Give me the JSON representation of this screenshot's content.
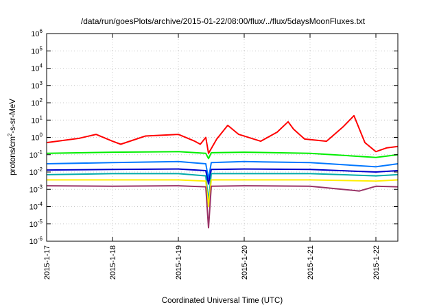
{
  "chart_data": {
    "type": "line",
    "title": "/data/run/goesPlots/archive/2015-01-22/08:00/flux/../flux/5daysMoonFluxes.txt",
    "xlabel": "Coordinated Universal Time (UTC)",
    "ylabel": {
      "base": "protons/cm",
      "sup": "2",
      "rest": "-s-sr-MeV"
    },
    "yscale": "log",
    "ylim": [
      1e-06,
      1000000.0
    ],
    "xlim": [
      "2015-01-17T00:00",
      "2015-01-22T08:00"
    ],
    "grid": true,
    "xtick_labels": [
      "2015-1-17",
      "2015-1-18",
      "2015-1-19",
      "2015-1-20",
      "2015-1-21",
      "2015-1-22"
    ],
    "ytick_labels": [
      {
        "base": "10",
        "exp": "-6"
      },
      {
        "base": "10",
        "exp": "-5"
      },
      {
        "base": "10",
        "exp": "-4"
      },
      {
        "base": "10",
        "exp": "-3"
      },
      {
        "base": "10",
        "exp": "-2"
      },
      {
        "base": "10",
        "exp": "-1"
      },
      {
        "base": "10",
        "exp": "0"
      },
      {
        "base": "10",
        "exp": "1"
      },
      {
        "base": "10",
        "exp": "2"
      },
      {
        "base": "10",
        "exp": "3"
      },
      {
        "base": "10",
        "exp": "4"
      },
      {
        "base": "10",
        "exp": "5"
      },
      {
        "base": "10",
        "exp": "6"
      }
    ],
    "series": [
      {
        "color": "#ff0000",
        "x": [
          "2015-01-17T00:00",
          "2015-01-17T12:00",
          "2015-01-17T18:00",
          "2015-01-18T00:00",
          "2015-01-18T03:00",
          "2015-01-18T12:00",
          "2015-01-19T00:00",
          "2015-01-19T06:00",
          "2015-01-19T08:00",
          "2015-01-19T10:00",
          "2015-01-19T11:00",
          "2015-01-19T14:00",
          "2015-01-19T18:00",
          "2015-01-19T22:00",
          "2015-01-20T06:00",
          "2015-01-20T12:00",
          "2015-01-20T16:00",
          "2015-01-20T18:00",
          "2015-01-20T22:00",
          "2015-01-21T06:00",
          "2015-01-21T12:00",
          "2015-01-21T16:00",
          "2015-01-21T18:00",
          "2015-01-21T20:00",
          "2015-01-22T00:00",
          "2015-01-22T04:00",
          "2015-01-22T08:00"
        ],
        "y": [
          0.5,
          0.9,
          1.5,
          0.6,
          0.4,
          1.2,
          1.5,
          0.6,
          0.4,
          1.0,
          0.12,
          0.8,
          5,
          1.5,
          0.6,
          2,
          8,
          3,
          0.8,
          0.6,
          4,
          18,
          3,
          0.5,
          0.15,
          0.25,
          0.3
        ]
      },
      {
        "color": "#00ee00",
        "x": [
          "2015-01-17T00:00",
          "2015-01-18T00:00",
          "2015-01-19T00:00",
          "2015-01-19T10:00",
          "2015-01-19T11:00",
          "2015-01-19T12:00",
          "2015-01-20T00:00",
          "2015-01-21T00:00",
          "2015-01-22T00:00",
          "2015-01-22T08:00"
        ],
        "y": [
          0.12,
          0.14,
          0.15,
          0.12,
          0.06,
          0.13,
          0.14,
          0.12,
          0.07,
          0.1
        ]
      },
      {
        "color": "#0077ff",
        "x": [
          "2015-01-17T00:00",
          "2015-01-18T00:00",
          "2015-01-19T00:00",
          "2015-01-19T10:00",
          "2015-01-19T11:00",
          "2015-01-19T12:00",
          "2015-01-20T00:00",
          "2015-01-21T00:00",
          "2015-01-22T00:00",
          "2015-01-22T08:00"
        ],
        "y": [
          0.03,
          0.035,
          0.04,
          0.03,
          0.004,
          0.035,
          0.04,
          0.035,
          0.02,
          0.03
        ]
      },
      {
        "color": "#0000cc",
        "x": [
          "2015-01-17T00:00",
          "2015-01-18T00:00",
          "2015-01-19T00:00",
          "2015-01-19T10:00",
          "2015-01-19T11:00",
          "2015-01-19T12:00",
          "2015-01-20T00:00",
          "2015-01-21T00:00",
          "2015-01-22T00:00",
          "2015-01-22T08:00"
        ],
        "y": [
          0.013,
          0.014,
          0.015,
          0.012,
          0.002,
          0.014,
          0.015,
          0.014,
          0.01,
          0.012
        ]
      },
      {
        "color": "#00aaaa",
        "x": [
          "2015-01-17T00:00",
          "2015-01-18T00:00",
          "2015-01-19T00:00",
          "2015-01-19T10:00",
          "2015-01-19T11:00",
          "2015-01-19T12:00",
          "2015-01-20T00:00",
          "2015-01-21T00:00",
          "2015-01-22T00:00",
          "2015-01-22T08:00"
        ],
        "y": [
          0.007,
          0.008,
          0.008,
          0.006,
          0.0002,
          0.008,
          0.008,
          0.008,
          0.006,
          0.007
        ]
      },
      {
        "color": "#ffee00",
        "x": [
          "2015-01-17T00:00",
          "2015-01-18T00:00",
          "2015-01-19T00:00",
          "2015-01-19T10:00",
          "2015-01-19T11:00",
          "2015-01-19T12:00",
          "2015-01-20T00:00",
          "2015-01-21T00:00",
          "2015-01-22T00:00",
          "2015-01-22T08:00"
        ],
        "y": [
          0.0035,
          0.0035,
          0.0035,
          0.003,
          0.0001,
          0.0035,
          0.0035,
          0.0035,
          0.003,
          0.0035
        ]
      },
      {
        "color": "#993366",
        "x": [
          "2015-01-17T00:00",
          "2015-01-18T00:00",
          "2015-01-19T00:00",
          "2015-01-19T10:00",
          "2015-01-19T11:00",
          "2015-01-19T12:00",
          "2015-01-20T00:00",
          "2015-01-21T00:00",
          "2015-01-21T18:00",
          "2015-01-22T00:00",
          "2015-01-22T08:00"
        ],
        "y": [
          0.0016,
          0.0015,
          0.0016,
          0.0014,
          6e-06,
          0.0015,
          0.0016,
          0.0015,
          0.0008,
          0.0015,
          0.0014
        ]
      }
    ]
  }
}
